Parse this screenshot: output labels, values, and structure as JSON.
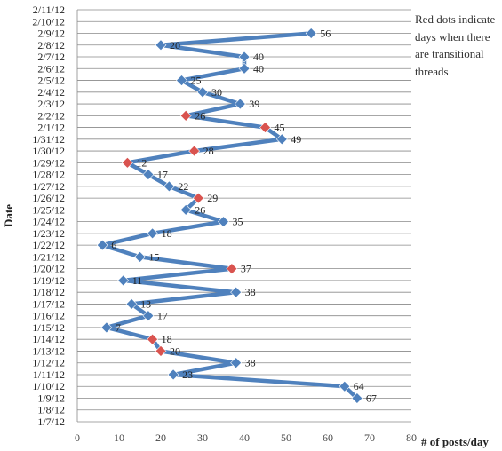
{
  "chart_data": {
    "type": "line",
    "orientation": "horizontal",
    "xlabel": "# of posts/day",
    "ylabel": "Date",
    "xlim": [
      0,
      80
    ],
    "xticks": [
      0,
      10,
      20,
      30,
      40,
      50,
      60,
      70,
      80
    ],
    "grid": "horizontal",
    "annotation": "Red dots indicate days when there are transitional threads",
    "line_color": "#4f81bd",
    "marker_color": "#4f81bd",
    "highlight_color": "#d9534f",
    "categories": [
      "1/7/12",
      "1/8/12",
      "1/9/12",
      "1/10/12",
      "1/11/12",
      "1/12/12",
      "1/13/12",
      "1/14/12",
      "1/15/12",
      "1/16/12",
      "1/17/12",
      "1/18/12",
      "1/19/12",
      "1/20/12",
      "1/21/12",
      "1/22/12",
      "1/23/12",
      "1/24/12",
      "1/25/12",
      "1/26/12",
      "1/27/12",
      "1/28/12",
      "1/29/12",
      "1/30/12",
      "1/31/12",
      "2/1/12",
      "2/2/12",
      "2/3/12",
      "2/4/12",
      "2/5/12",
      "2/6/12",
      "2/7/12",
      "2/8/12",
      "2/9/12",
      "2/10/12",
      "2/11/12"
    ],
    "series": [
      {
        "points": [
          {
            "date": "1/9/12",
            "value": 67,
            "transitional": false
          },
          {
            "date": "1/10/12",
            "value": 64,
            "transitional": false
          },
          {
            "date": "1/11/12",
            "value": 23,
            "transitional": false
          },
          {
            "date": "1/12/12",
            "value": 38,
            "transitional": false
          },
          {
            "date": "1/13/12",
            "value": 20,
            "transitional": true
          },
          {
            "date": "1/14/12",
            "value": 18,
            "transitional": true
          },
          {
            "date": "1/15/12",
            "value": 7,
            "transitional": false
          },
          {
            "date": "1/16/12",
            "value": 17,
            "transitional": false
          },
          {
            "date": "1/17/12",
            "value": 13,
            "transitional": false
          },
          {
            "date": "1/18/12",
            "value": 38,
            "transitional": false
          },
          {
            "date": "1/19/12",
            "value": 11,
            "transitional": false
          },
          {
            "date": "1/20/12",
            "value": 37,
            "transitional": true
          },
          {
            "date": "1/21/12",
            "value": 15,
            "transitional": false
          },
          {
            "date": "1/22/12",
            "value": 6,
            "transitional": false
          },
          {
            "date": "1/23/12",
            "value": 18,
            "transitional": false
          },
          {
            "date": "1/24/12",
            "value": 35,
            "transitional": false
          },
          {
            "date": "1/25/12",
            "value": 26,
            "transitional": false
          },
          {
            "date": "1/26/12",
            "value": 29,
            "transitional": true
          },
          {
            "date": "1/27/12",
            "value": 22,
            "transitional": false
          },
          {
            "date": "1/28/12",
            "value": 17,
            "transitional": false
          },
          {
            "date": "1/29/12",
            "value": 12,
            "transitional": true
          },
          {
            "date": "1/30/12",
            "value": 28,
            "transitional": true
          },
          {
            "date": "1/31/12",
            "value": 49,
            "transitional": false
          },
          {
            "date": "2/1/12",
            "value": 45,
            "transitional": true
          },
          {
            "date": "2/2/12",
            "value": 26,
            "transitional": true
          },
          {
            "date": "2/3/12",
            "value": 39,
            "transitional": false
          },
          {
            "date": "2/4/12",
            "value": 30,
            "transitional": false
          },
          {
            "date": "2/5/12",
            "value": 25,
            "transitional": false
          },
          {
            "date": "2/6/12",
            "value": 40,
            "transitional": false
          },
          {
            "date": "2/7/12",
            "value": 40,
            "transitional": false
          },
          {
            "date": "2/8/12",
            "value": 20,
            "transitional": false
          },
          {
            "date": "2/9/12",
            "value": 56,
            "transitional": false
          }
        ]
      }
    ]
  }
}
